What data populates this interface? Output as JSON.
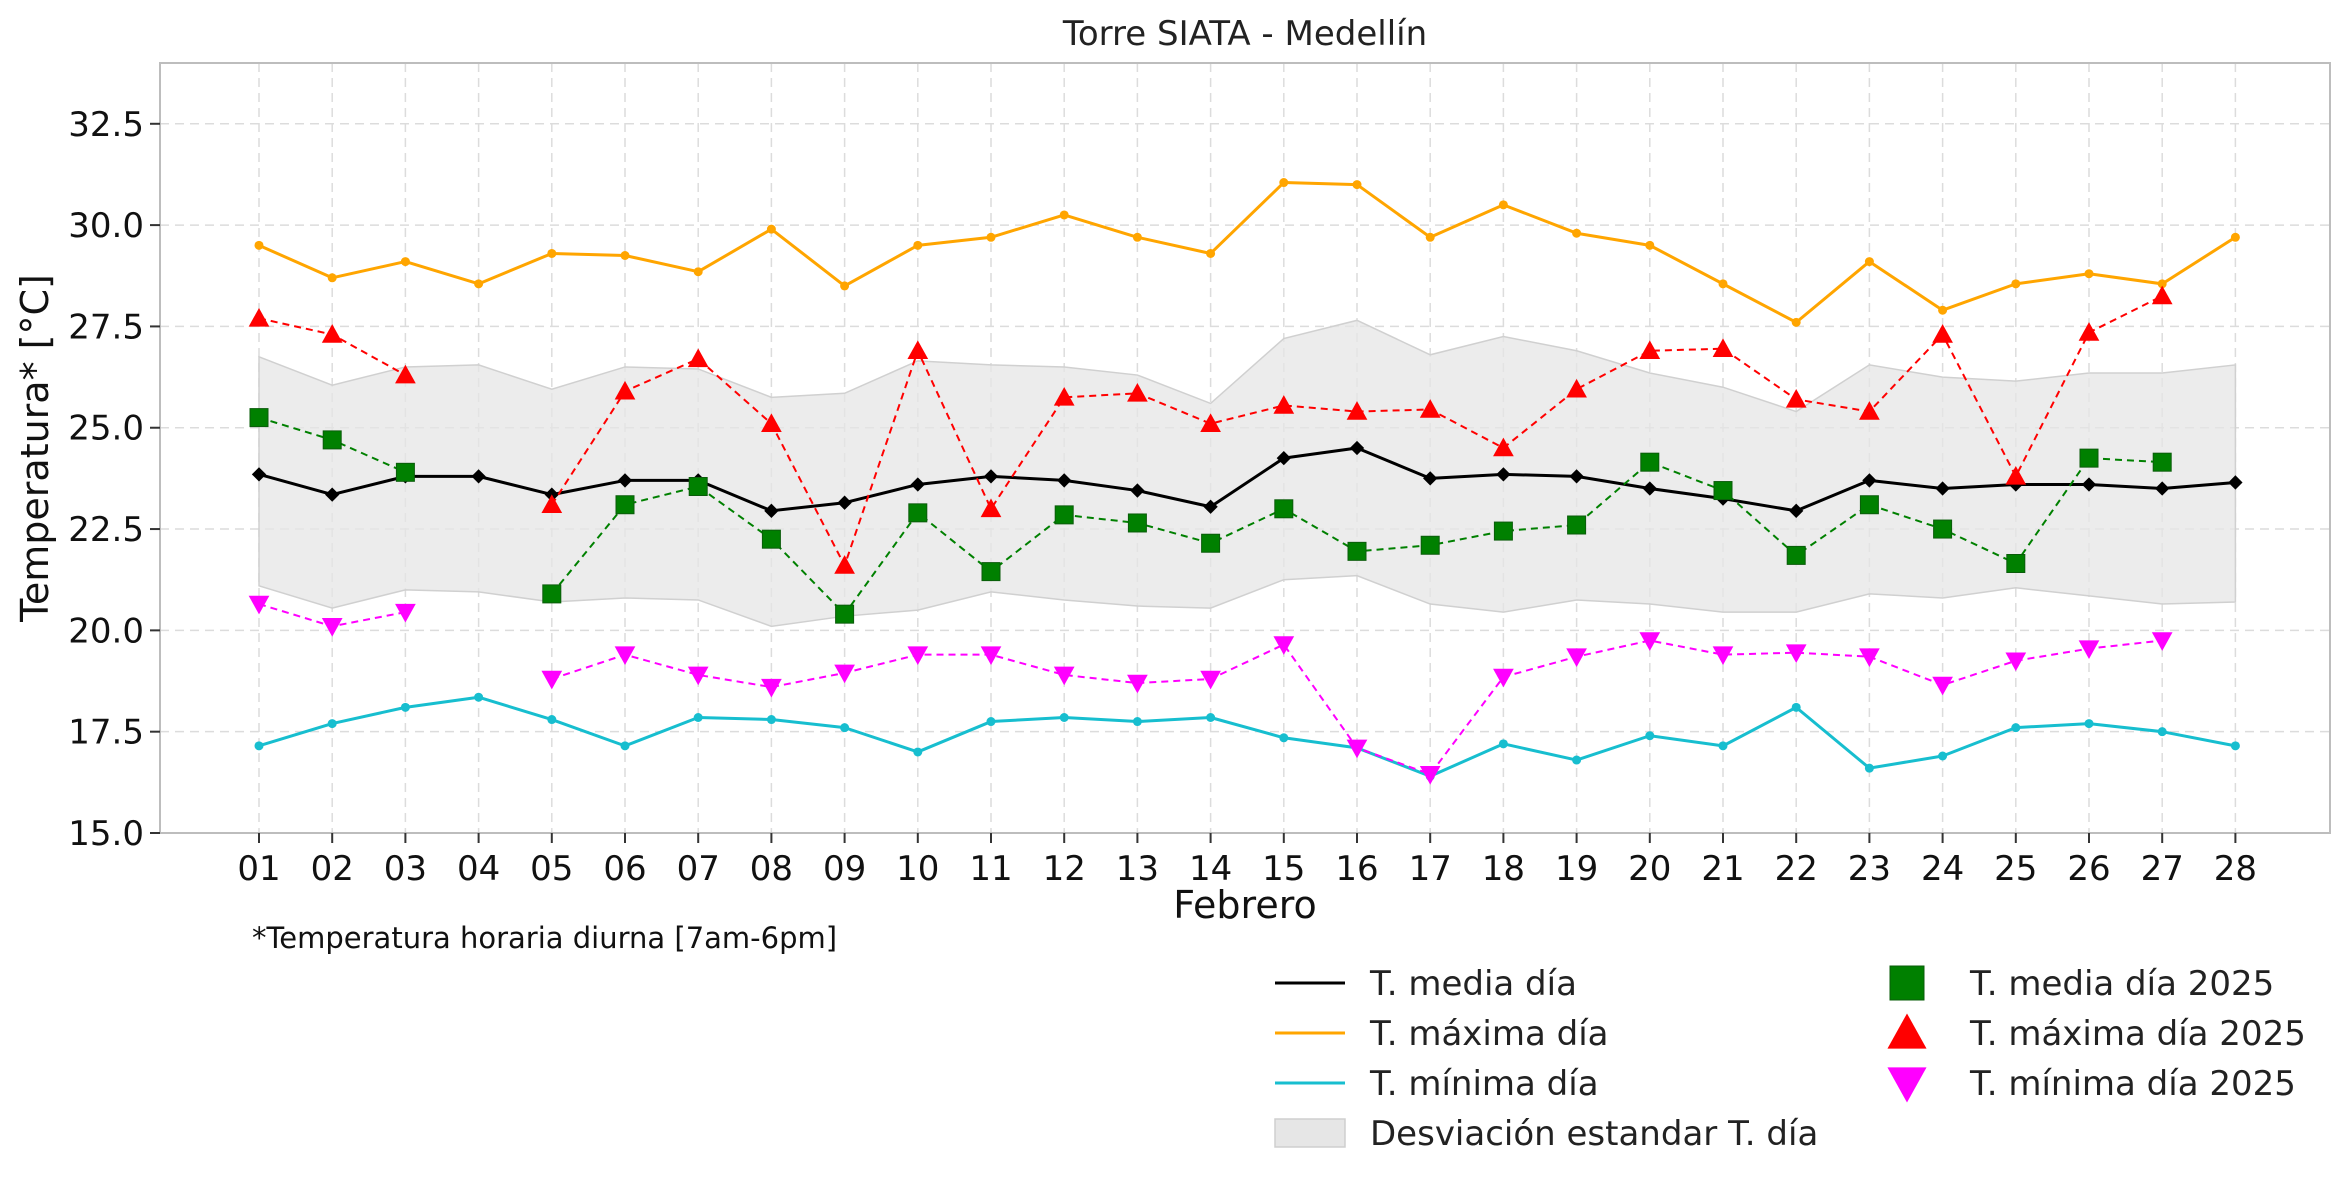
{
  "chart_data": {
    "type": "line",
    "title": "Torre SIATA - Medellín",
    "xlabel": "Febrero",
    "ylabel": "Temperatura* [°C]",
    "note": "*Temperatura horaria diurna [7am-6pm]",
    "categories": [
      "01",
      "02",
      "03",
      "04",
      "05",
      "06",
      "07",
      "08",
      "09",
      "10",
      "11",
      "12",
      "13",
      "14",
      "15",
      "16",
      "17",
      "18",
      "19",
      "20",
      "21",
      "22",
      "23",
      "24",
      "25",
      "26",
      "27",
      "28"
    ],
    "ylim": [
      15.0,
      34.0
    ],
    "yticks": [
      "15.0",
      "17.5",
      "20.0",
      "22.5",
      "25.0",
      "27.5",
      "30.0",
      "32.5"
    ],
    "grid": true,
    "legend_position": "bottom-right",
    "series": [
      {
        "name": "T. media día",
        "color": "#000000",
        "style": "solid",
        "marker": "diamond",
        "values": [
          23.85,
          23.35,
          23.8,
          23.8,
          23.35,
          23.7,
          23.7,
          22.95,
          23.15,
          23.6,
          23.8,
          23.7,
          23.45,
          23.05,
          24.25,
          24.5,
          23.75,
          23.85,
          23.8,
          23.5,
          23.25,
          22.95,
          23.7,
          23.5,
          23.6,
          23.6,
          23.5,
          23.65
        ]
      },
      {
        "name": "T. máxima día",
        "color": "#ffa500",
        "style": "solid",
        "marker": "dot",
        "values": [
          29.5,
          28.7,
          29.1,
          28.55,
          29.3,
          29.25,
          28.85,
          29.9,
          28.5,
          29.5,
          29.7,
          30.25,
          29.7,
          29.3,
          31.05,
          31.0,
          29.7,
          30.5,
          29.8,
          29.5,
          28.55,
          27.6,
          29.1,
          27.9,
          28.55,
          28.8,
          28.55,
          29.7
        ]
      },
      {
        "name": "T. mínima día",
        "color": "#17becf",
        "style": "solid",
        "marker": "dot",
        "values": [
          17.15,
          17.7,
          18.1,
          18.35,
          17.8,
          17.15,
          17.85,
          17.8,
          17.6,
          17.0,
          17.75,
          17.85,
          17.75,
          17.85,
          17.35,
          17.1,
          16.4,
          17.2,
          16.8,
          17.4,
          17.15,
          18.1,
          16.6,
          16.9,
          17.6,
          17.7,
          17.5,
          17.15
        ]
      },
      {
        "name": "T. media día 2025",
        "color": "#008000",
        "style": "dashed",
        "marker": "square",
        "values": [
          25.25,
          24.7,
          23.9,
          null,
          20.9,
          23.1,
          23.55,
          22.25,
          20.4,
          22.9,
          21.45,
          22.85,
          22.65,
          22.15,
          23.0,
          21.95,
          22.1,
          22.45,
          22.6,
          24.15,
          23.45,
          21.85,
          23.1,
          22.5,
          21.65,
          24.25,
          24.15,
          null
        ]
      },
      {
        "name": "T. máxima día 2025",
        "color": "#ff0000",
        "style": "dashed",
        "marker": "triangle-up",
        "values": [
          27.7,
          27.3,
          26.3,
          null,
          23.1,
          25.9,
          26.7,
          25.1,
          21.6,
          26.9,
          23.0,
          25.75,
          25.85,
          25.1,
          25.55,
          25.4,
          25.45,
          24.5,
          25.95,
          26.9,
          26.95,
          25.7,
          25.4,
          27.3,
          23.8,
          27.35,
          28.25,
          null
        ]
      },
      {
        "name": "T. mínima día 2025",
        "color": "#ff00ff",
        "style": "dashed",
        "marker": "triangle-down",
        "values": [
          20.65,
          20.1,
          20.45,
          null,
          18.8,
          19.4,
          18.9,
          18.6,
          18.95,
          19.4,
          19.4,
          18.9,
          18.7,
          18.8,
          19.65,
          17.1,
          16.45,
          18.85,
          19.35,
          19.75,
          19.4,
          19.45,
          19.35,
          18.65,
          19.25,
          19.55,
          19.75,
          null
        ]
      }
    ],
    "std_band": {
      "name": "Desviación estandar T. día",
      "color": "#e6e6e6",
      "upper": [
        26.75,
        26.05,
        26.5,
        26.55,
        25.95,
        26.5,
        26.45,
        25.75,
        25.85,
        26.65,
        26.55,
        26.5,
        26.3,
        25.6,
        27.2,
        27.65,
        26.8,
        27.25,
        26.9,
        26.35,
        26.0,
        25.4,
        26.55,
        26.25,
        26.15,
        26.35,
        26.35,
        26.55
      ],
      "lower": [
        21.1,
        20.55,
        21.0,
        20.95,
        20.7,
        20.8,
        20.75,
        20.1,
        20.35,
        20.5,
        20.95,
        20.75,
        20.6,
        20.55,
        21.25,
        21.35,
        20.65,
        20.45,
        20.75,
        20.65,
        20.45,
        20.45,
        20.9,
        20.8,
        21.05,
        20.85,
        20.65,
        20.7
      ]
    }
  }
}
